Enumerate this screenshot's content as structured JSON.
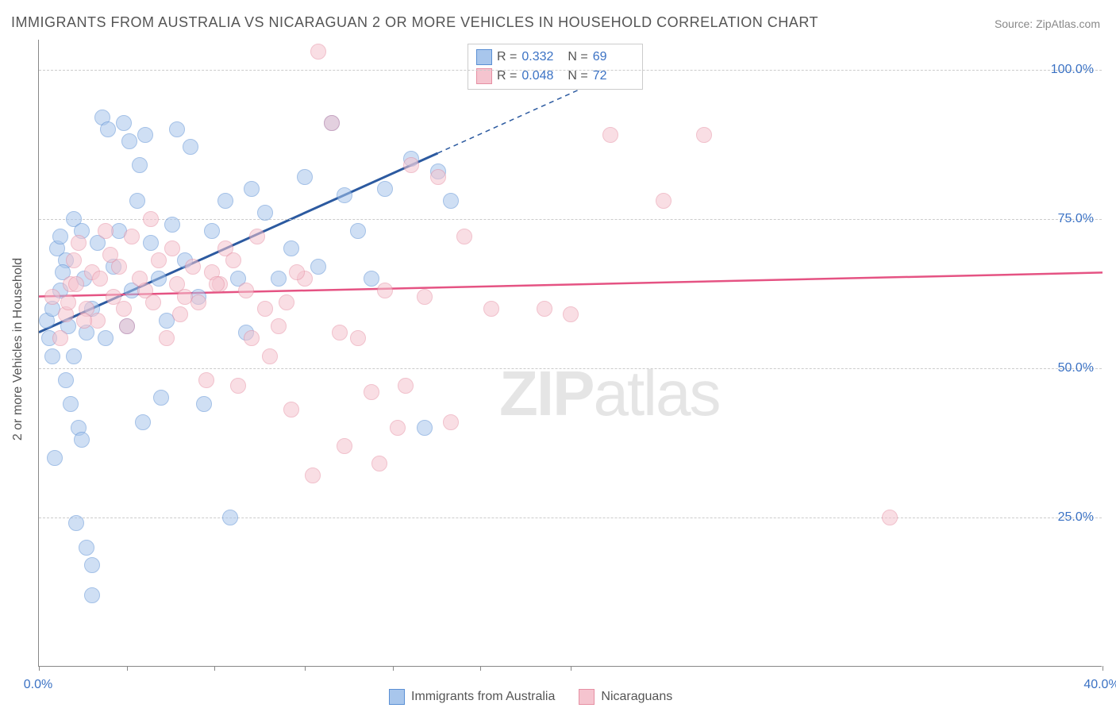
{
  "title": "IMMIGRANTS FROM AUSTRALIA VS NICARAGUAN 2 OR MORE VEHICLES IN HOUSEHOLD CORRELATION CHART",
  "source": "Source: ZipAtlas.com",
  "y_axis_label": "2 or more Vehicles in Household",
  "watermark_a": "ZIP",
  "watermark_b": "atlas",
  "chart": {
    "type": "scatter",
    "background_color": "#ffffff",
    "grid_color": "#cccccc",
    "axis_color": "#888888",
    "tick_label_color": "#3b72c4",
    "xlim": [
      0,
      40
    ],
    "ylim": [
      0,
      105
    ],
    "x_ticks": [
      0,
      3.3,
      6.6,
      10,
      13.3,
      16.6,
      20,
      40
    ],
    "x_tick_labels": {
      "0": "0.0%",
      "40": "40.0%"
    },
    "y_gridlines": [
      25,
      50,
      75,
      100
    ],
    "y_tick_labels": {
      "25": "25.0%",
      "50": "50.0%",
      "75": "75.0%",
      "100": "100.0%"
    },
    "marker_radius": 10,
    "marker_opacity": 0.55,
    "series": [
      {
        "name": "Immigrants from Australia",
        "fill_color": "#a8c6ec",
        "stroke_color": "#5a8fd4",
        "trend_color": "#2c5aa0",
        "trend_width": 3,
        "R": "0.332",
        "N": "69",
        "trend": {
          "x1": 0,
          "y1": 56,
          "x2_solid": 15,
          "y2_solid": 86,
          "x2_dash": 22,
          "y2_dash": 100
        },
        "points": [
          [
            0.3,
            58
          ],
          [
            0.4,
            55
          ],
          [
            0.5,
            60
          ],
          [
            0.5,
            52
          ],
          [
            0.7,
            70
          ],
          [
            0.8,
            72
          ],
          [
            1.0,
            68
          ],
          [
            1.2,
            44
          ],
          [
            1.3,
            75
          ],
          [
            1.5,
            40
          ],
          [
            1.6,
            38
          ],
          [
            1.4,
            24
          ],
          [
            1.8,
            20
          ],
          [
            2.0,
            17
          ],
          [
            2.0,
            12
          ],
          [
            1.8,
            56
          ],
          [
            2.2,
            71
          ],
          [
            2.4,
            92
          ],
          [
            2.6,
            90
          ],
          [
            2.0,
            60
          ],
          [
            3.0,
            73
          ],
          [
            3.2,
            91
          ],
          [
            3.4,
            88
          ],
          [
            3.5,
            63
          ],
          [
            3.7,
            78
          ],
          [
            3.8,
            84
          ],
          [
            4.0,
            89
          ],
          [
            4.2,
            71
          ],
          [
            4.5,
            65
          ],
          [
            4.6,
            45
          ],
          [
            5.0,
            74
          ],
          [
            5.2,
            90
          ],
          [
            5.5,
            68
          ],
          [
            5.7,
            87
          ],
          [
            6.0,
            62
          ],
          [
            6.2,
            44
          ],
          [
            6.5,
            73
          ],
          [
            7.0,
            78
          ],
          [
            7.2,
            25
          ],
          [
            7.5,
            65
          ],
          [
            8.0,
            80
          ],
          [
            8.5,
            76
          ],
          [
            9.0,
            65
          ],
          [
            9.5,
            70
          ],
          [
            10.0,
            82
          ],
          [
            10.5,
            67
          ],
          [
            11.0,
            91
          ],
          [
            11.5,
            79
          ],
          [
            12.0,
            73
          ],
          [
            12.5,
            65
          ],
          [
            13.0,
            80
          ],
          [
            14.0,
            85
          ],
          [
            14.5,
            40
          ],
          [
            15.0,
            83
          ],
          [
            15.5,
            78
          ],
          [
            1.0,
            48
          ],
          [
            1.3,
            52
          ],
          [
            0.8,
            63
          ],
          [
            1.1,
            57
          ],
          [
            2.5,
            55
          ],
          [
            3.3,
            57
          ],
          [
            4.8,
            58
          ],
          [
            0.6,
            35
          ],
          [
            1.7,
            65
          ],
          [
            2.8,
            67
          ],
          [
            3.9,
            41
          ],
          [
            7.8,
            56
          ],
          [
            0.9,
            66
          ],
          [
            1.6,
            73
          ]
        ]
      },
      {
        "name": "Nicaraguans",
        "fill_color": "#f5c4cf",
        "stroke_color": "#e68fa3",
        "trend_color": "#e55383",
        "trend_width": 2.5,
        "R": "0.048",
        "N": "72",
        "trend": {
          "x1": 0,
          "y1": 62,
          "x2_solid": 40,
          "y2_solid": 66
        },
        "points": [
          [
            0.5,
            62
          ],
          [
            1.0,
            59
          ],
          [
            1.2,
            64
          ],
          [
            1.5,
            71
          ],
          [
            1.8,
            60
          ],
          [
            2.0,
            66
          ],
          [
            2.2,
            58
          ],
          [
            2.5,
            73
          ],
          [
            2.8,
            62
          ],
          [
            3.0,
            67
          ],
          [
            3.2,
            60
          ],
          [
            3.5,
            72
          ],
          [
            3.8,
            65
          ],
          [
            4.0,
            63
          ],
          [
            4.2,
            75
          ],
          [
            4.5,
            68
          ],
          [
            4.8,
            55
          ],
          [
            5.0,
            70
          ],
          [
            5.2,
            64
          ],
          [
            5.5,
            62
          ],
          [
            5.8,
            67
          ],
          [
            6.0,
            61
          ],
          [
            6.3,
            48
          ],
          [
            6.5,
            66
          ],
          [
            6.8,
            64
          ],
          [
            7.0,
            70
          ],
          [
            7.5,
            47
          ],
          [
            7.8,
            63
          ],
          [
            8.0,
            55
          ],
          [
            8.2,
            72
          ],
          [
            8.5,
            60
          ],
          [
            9.0,
            57
          ],
          [
            9.5,
            43
          ],
          [
            10.0,
            65
          ],
          [
            10.5,
            103
          ],
          [
            11.0,
            91
          ],
          [
            11.5,
            37
          ],
          [
            12.0,
            55
          ],
          [
            12.5,
            46
          ],
          [
            13.0,
            63
          ],
          [
            13.5,
            40
          ],
          [
            14.0,
            84
          ],
          [
            14.5,
            62
          ],
          [
            15.0,
            82
          ],
          [
            15.5,
            41
          ],
          [
            16.0,
            72
          ],
          [
            17.0,
            60
          ],
          [
            19.0,
            60
          ],
          [
            20.0,
            59
          ],
          [
            21.5,
            89
          ],
          [
            23.5,
            78
          ],
          [
            25.0,
            89
          ],
          [
            32.0,
            25
          ],
          [
            1.3,
            68
          ],
          [
            1.7,
            58
          ],
          [
            2.3,
            65
          ],
          [
            2.7,
            69
          ],
          [
            3.3,
            57
          ],
          [
            4.3,
            61
          ],
          [
            5.3,
            59
          ],
          [
            6.7,
            64
          ],
          [
            7.3,
            68
          ],
          [
            8.7,
            52
          ],
          [
            9.3,
            61
          ],
          [
            11.3,
            56
          ],
          [
            0.8,
            55
          ],
          [
            1.1,
            61
          ],
          [
            1.4,
            64
          ],
          [
            9.7,
            66
          ],
          [
            10.3,
            32
          ],
          [
            12.8,
            34
          ],
          [
            13.8,
            47
          ]
        ]
      }
    ]
  },
  "bottom_legend": [
    {
      "label": "Immigrants from Australia",
      "fill": "#a8c6ec",
      "stroke": "#5a8fd4"
    },
    {
      "label": "Nicaraguans",
      "fill": "#f5c4cf",
      "stroke": "#e68fa3"
    }
  ]
}
